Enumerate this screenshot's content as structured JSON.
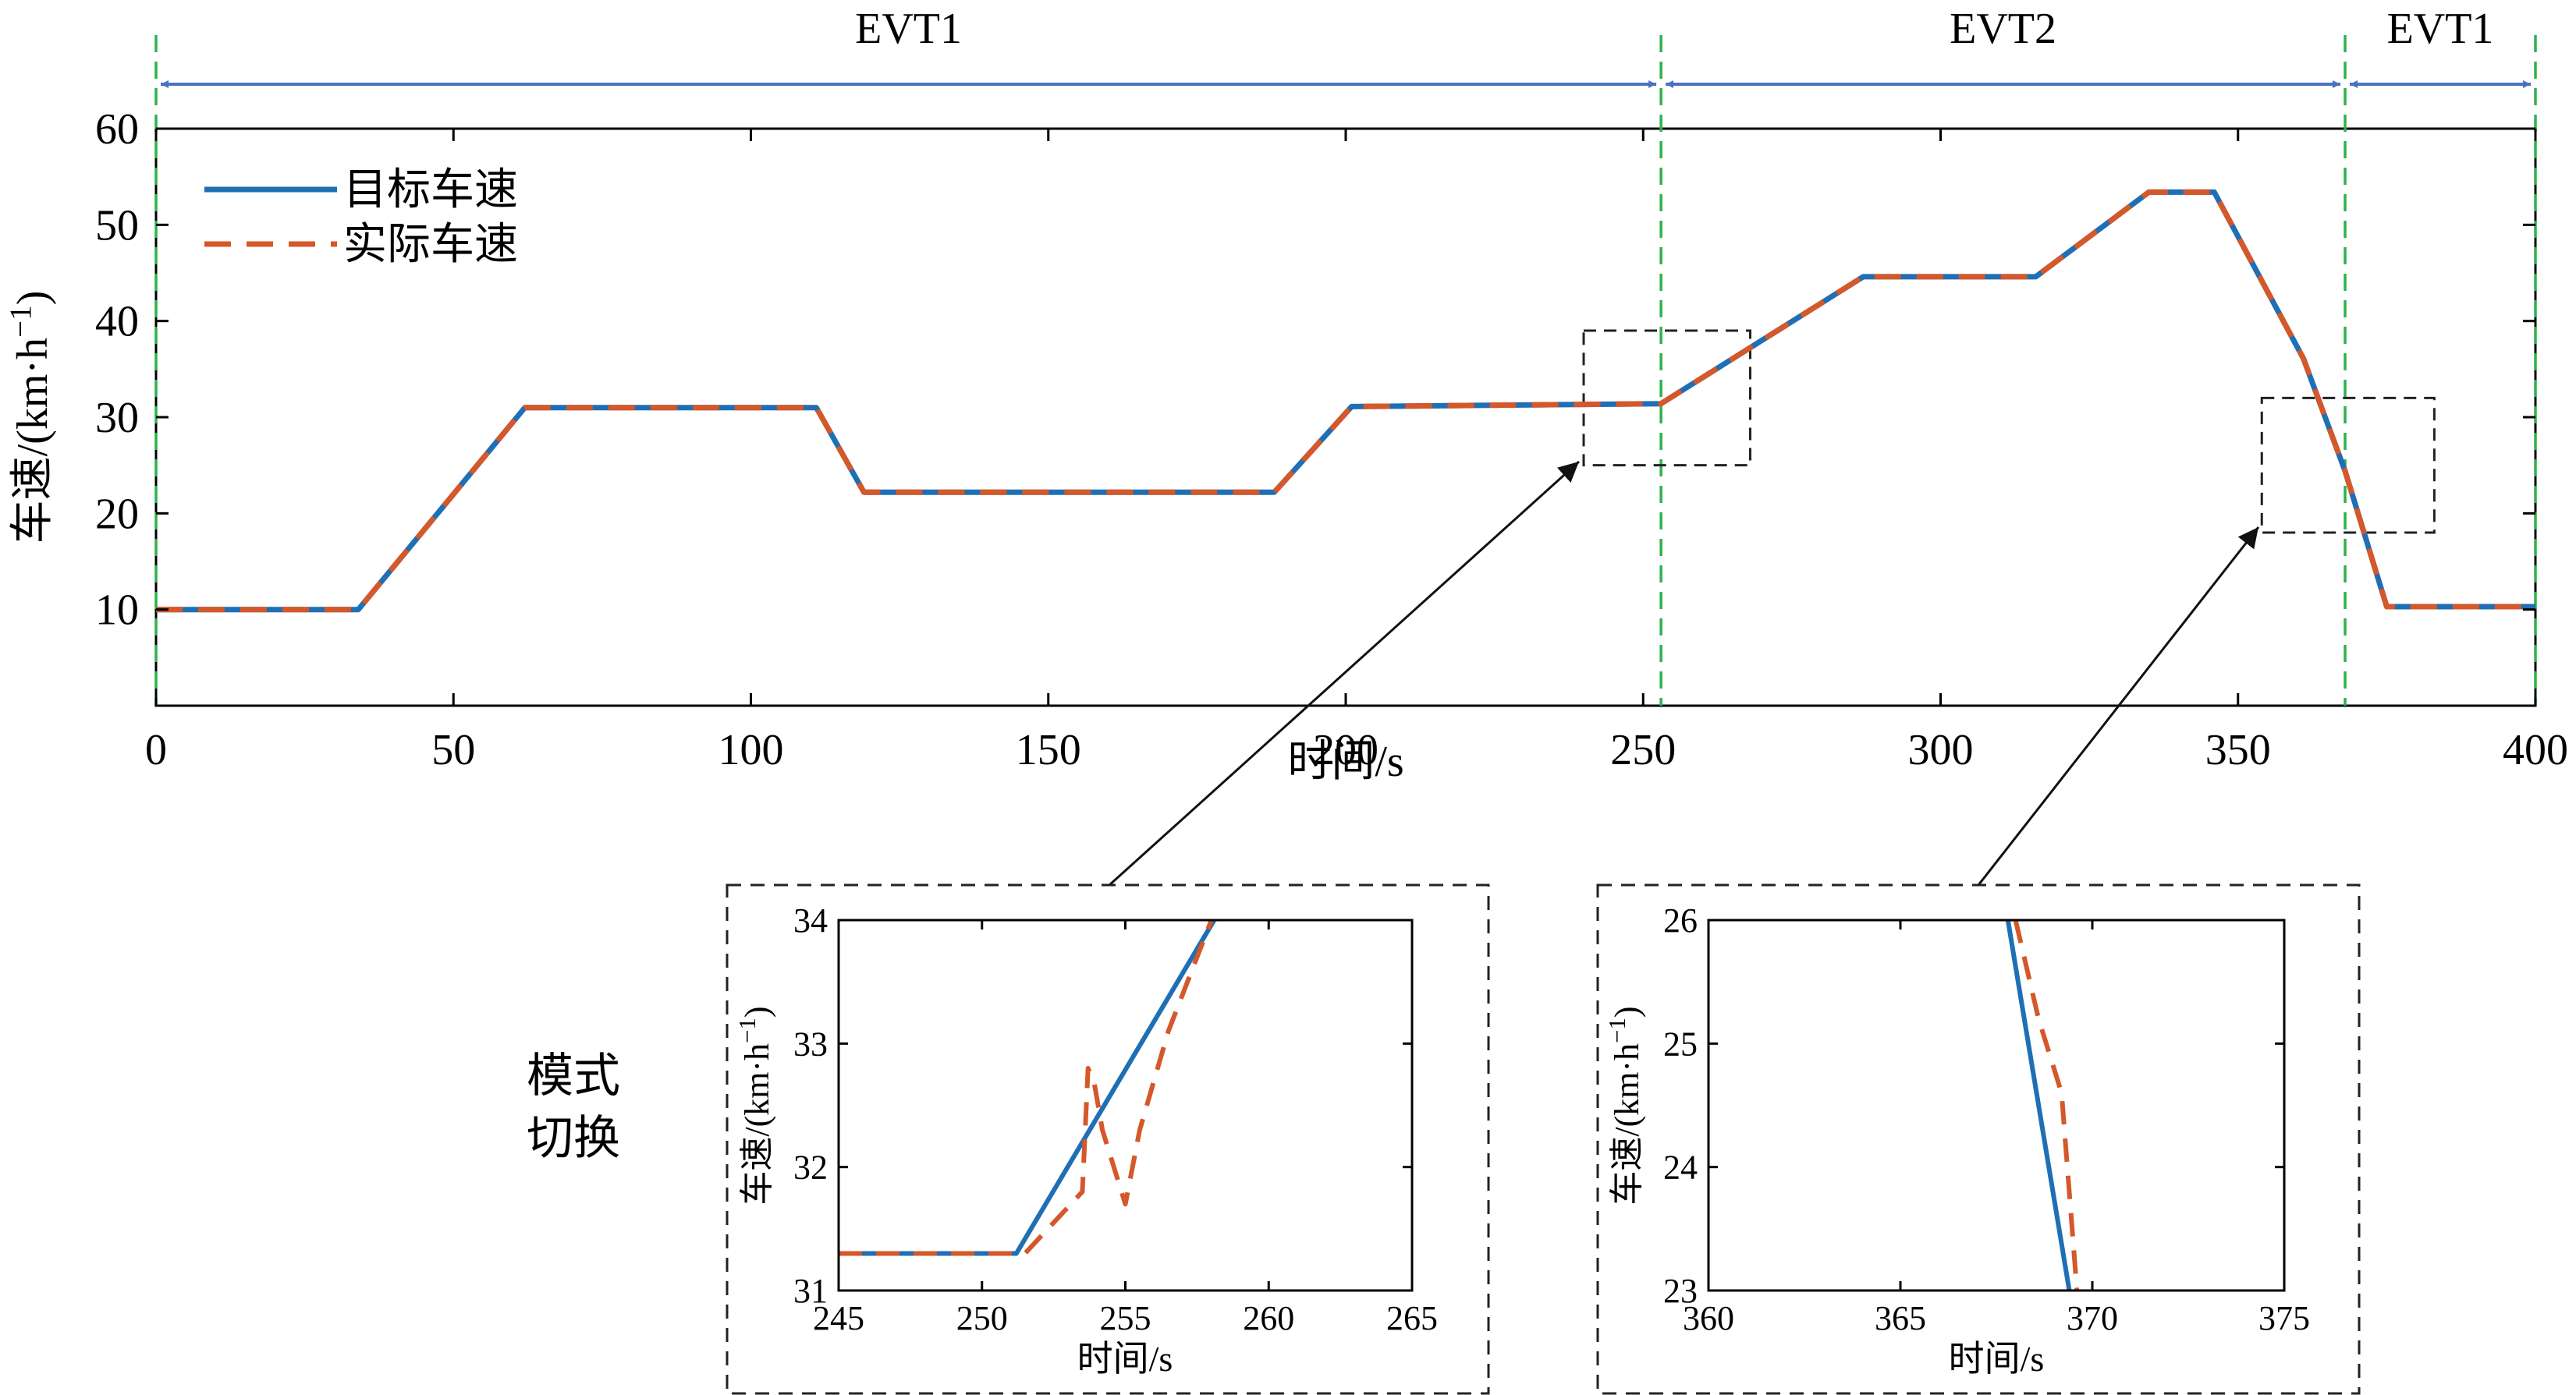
{
  "chart_data": [
    {
      "type": "line",
      "id": "main",
      "xlabel": "时间/s",
      "ylabel": "车速/(km·h⁻¹)",
      "xlim": [
        0,
        400
      ],
      "ylim": [
        0,
        60
      ],
      "xticks": [
        0,
        50,
        100,
        150,
        200,
        250,
        300,
        350,
        400
      ],
      "yticks": [
        10,
        20,
        30,
        40,
        50,
        60
      ],
      "legend": {
        "position": "top-left",
        "entries": [
          "目标车速",
          "实际车速"
        ]
      },
      "series": [
        {
          "name": "目标车速",
          "color": "#1f6fb4",
          "style": "solid",
          "x": [
            0,
            34,
            62,
            111,
            119,
            188,
            201,
            253,
            287,
            316,
            335,
            346,
            361,
            368,
            375,
            400
          ],
          "y": [
            10,
            10,
            31,
            31,
            22.2,
            22.2,
            31.1,
            31.4,
            44.6,
            44.6,
            53.4,
            53.4,
            36.1,
            24.4,
            10.3,
            10.3
          ]
        },
        {
          "name": "实际车速",
          "color": "#d4582a",
          "style": "dashed",
          "x": [
            0,
            34,
            62,
            111,
            119,
            188,
            201,
            253,
            287,
            316,
            335,
            346,
            361,
            368,
            375,
            400
          ],
          "y": [
            10,
            10,
            31,
            31,
            22.2,
            22.2,
            31.1,
            31.4,
            44.6,
            44.6,
            53.4,
            53.4,
            36.1,
            24.4,
            10.3,
            10.3
          ]
        }
      ],
      "mode_regions": [
        {
          "label": "EVT1",
          "x_start": 0,
          "x_end": 253
        },
        {
          "label": "EVT2",
          "x_start": 253,
          "x_end": 368
        },
        {
          "label": "EVT1",
          "x_start": 368,
          "x_end": 400
        }
      ],
      "switch_lines_x": [
        0,
        253,
        368,
        400
      ],
      "zoom_boxes": [
        {
          "x_range": [
            240,
            268
          ],
          "y_range": [
            25,
            39
          ]
        },
        {
          "x_range": [
            354,
            383
          ],
          "y_range": [
            18,
            32
          ]
        }
      ]
    },
    {
      "type": "line",
      "id": "inset1",
      "xlabel": "时间/s",
      "ylabel": "车速/(km·h⁻¹)",
      "xlim": [
        245,
        265
      ],
      "ylim": [
        31,
        34
      ],
      "xticks": [
        245,
        250,
        255,
        260,
        265
      ],
      "yticks": [
        31,
        32,
        33,
        34
      ],
      "series": [
        {
          "name": "目标车速",
          "x": [
            245,
            251.2,
            258.1
          ],
          "y": [
            31.3,
            31.3,
            34
          ]
        },
        {
          "name": "实际车速",
          "x": [
            245,
            251.5,
            253.5,
            253.7,
            253.9,
            254.2,
            255,
            255.5,
            256.5,
            258
          ],
          "y": [
            31.3,
            31.3,
            31.8,
            32.8,
            32.7,
            32.3,
            31.7,
            32.3,
            33.1,
            34
          ]
        }
      ]
    },
    {
      "type": "line",
      "id": "inset2",
      "xlabel": "时间/s",
      "ylabel": "车速/(km·h⁻¹)",
      "xlim": [
        360,
        375
      ],
      "ylim": [
        23,
        26
      ],
      "xticks": [
        360,
        365,
        370,
        375
      ],
      "yticks": [
        23,
        24,
        25,
        26
      ],
      "series": [
        {
          "name": "目标车速",
          "x": [
            367.8,
            369.4
          ],
          "y": [
            26,
            23
          ]
        },
        {
          "name": "实际车速",
          "x": [
            368,
            368.6,
            369.2,
            369.6
          ],
          "y": [
            26,
            25.2,
            24.6,
            23
          ]
        }
      ]
    }
  ],
  "annotation": {
    "line1": "模式",
    "line2": "切换"
  }
}
